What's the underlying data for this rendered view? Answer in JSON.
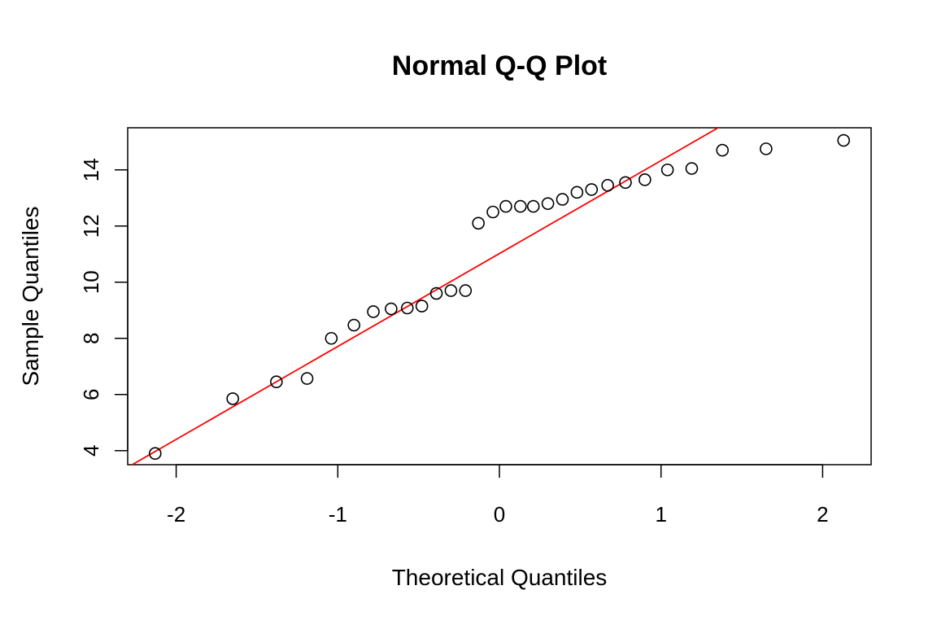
{
  "chart_data": {
    "type": "scatter",
    "title": "Normal Q-Q Plot",
    "xlabel": "Theoretical Quantiles",
    "ylabel": "Sample Quantiles",
    "xlim": [
      -2.3,
      2.3
    ],
    "ylim": [
      3.5,
      15.5
    ],
    "x_ticks": [
      -2,
      -1,
      0,
      1,
      2
    ],
    "x_tick_labels": [
      "-2",
      "-1",
      "0",
      "1",
      "2"
    ],
    "y_ticks": [
      4,
      6,
      8,
      10,
      12,
      14
    ],
    "y_tick_labels": [
      "4",
      "6",
      "8",
      "10",
      "12",
      "14"
    ],
    "grid": false,
    "legend": "none",
    "point_color": "#000000",
    "line_color": "#ff0000",
    "points": [
      {
        "x": -2.13,
        "y": 3.9
      },
      {
        "x": -1.65,
        "y": 5.85
      },
      {
        "x": -1.38,
        "y": 6.45
      },
      {
        "x": -1.19,
        "y": 6.57
      },
      {
        "x": -1.04,
        "y": 8.0
      },
      {
        "x": -0.9,
        "y": 8.47
      },
      {
        "x": -0.78,
        "y": 8.95
      },
      {
        "x": -0.67,
        "y": 9.05
      },
      {
        "x": -0.57,
        "y": 9.08
      },
      {
        "x": -0.48,
        "y": 9.15
      },
      {
        "x": -0.39,
        "y": 9.6
      },
      {
        "x": -0.3,
        "y": 9.7
      },
      {
        "x": -0.21,
        "y": 9.7
      },
      {
        "x": -0.13,
        "y": 12.1
      },
      {
        "x": -0.04,
        "y": 12.5
      },
      {
        "x": 0.04,
        "y": 12.7
      },
      {
        "x": 0.13,
        "y": 12.7
      },
      {
        "x": 0.21,
        "y": 12.7
      },
      {
        "x": 0.3,
        "y": 12.8
      },
      {
        "x": 0.39,
        "y": 12.95
      },
      {
        "x": 0.48,
        "y": 13.2
      },
      {
        "x": 0.57,
        "y": 13.3
      },
      {
        "x": 0.67,
        "y": 13.45
      },
      {
        "x": 0.78,
        "y": 13.55
      },
      {
        "x": 0.9,
        "y": 13.65
      },
      {
        "x": 1.04,
        "y": 14.0
      },
      {
        "x": 1.19,
        "y": 14.05
      },
      {
        "x": 1.38,
        "y": 14.7
      },
      {
        "x": 1.65,
        "y": 14.75
      },
      {
        "x": 2.13,
        "y": 15.05
      }
    ],
    "reference_line": {
      "intercept": 11.02,
      "slope": 3.31
    }
  }
}
